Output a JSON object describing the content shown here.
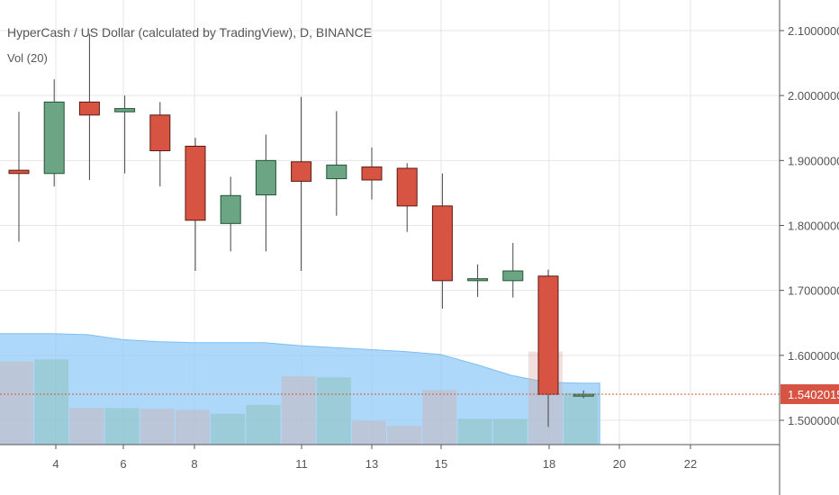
{
  "header": {
    "title": "HyperCash / US Dollar (calculated by TradingView), D, BINANCE",
    "volume_label": "Vol (20)"
  },
  "colors": {
    "up_fill": "#6ba583",
    "up_border": "#225437",
    "down_fill": "#d75442",
    "down_border": "#5b1a13",
    "volume_ma": "#91cbf7",
    "volume_bar": "#a0a6b0",
    "price_line": "#d75442",
    "grid": "#e6e6e6",
    "axis_text": "#555555"
  },
  "chart_data": {
    "type": "candlestick",
    "title": "HyperCash / US Dollar (calculated by TradingView), D, BINANCE",
    "x_ticks": [
      "4",
      "6",
      "8",
      "11",
      "13",
      "15",
      "18",
      "20",
      "22"
    ],
    "y_ticks": [
      "2.1000000",
      "2.0000000",
      "1.9000000",
      "1.8000000",
      "1.7000000",
      "1.6000000",
      "1.5000000"
    ],
    "ylim": [
      1.44,
      2.12
    ],
    "current_price": "1.5402015",
    "grid": true,
    "candles": [
      {
        "o": 1.885,
        "h": 1.975,
        "l": 1.775,
        "c": 1.88
      },
      {
        "o": 1.88,
        "h": 2.025,
        "l": 1.86,
        "c": 1.99
      },
      {
        "o": 1.99,
        "h": 2.095,
        "l": 1.87,
        "c": 1.97
      },
      {
        "o": 1.975,
        "h": 2.0,
        "l": 1.88,
        "c": 1.98
      },
      {
        "o": 1.97,
        "h": 1.99,
        "l": 1.86,
        "c": 1.915
      },
      {
        "o": 1.922,
        "h": 1.935,
        "l": 1.73,
        "c": 1.808
      },
      {
        "o": 1.803,
        "h": 1.875,
        "l": 1.76,
        "c": 1.846
      },
      {
        "o": 1.847,
        "h": 1.94,
        "l": 1.76,
        "c": 1.9
      },
      {
        "o": 1.898,
        "h": 1.998,
        "l": 1.73,
        "c": 1.868
      },
      {
        "o": 1.872,
        "h": 1.976,
        "l": 1.815,
        "c": 1.893
      },
      {
        "o": 1.89,
        "h": 1.92,
        "l": 1.84,
        "c": 1.87
      },
      {
        "o": 1.888,
        "h": 1.896,
        "l": 1.79,
        "c": 1.83
      },
      {
        "o": 1.83,
        "h": 1.88,
        "l": 1.672,
        "c": 1.715
      },
      {
        "o": 1.715,
        "h": 1.74,
        "l": 1.69,
        "c": 1.718
      },
      {
        "o": 1.715,
        "h": 1.773,
        "l": 1.689,
        "c": 1.73
      },
      {
        "o": 1.722,
        "h": 1.732,
        "l": 1.49,
        "c": 1.54
      },
      {
        "o": 1.54,
        "h": 1.546,
        "l": 1.534,
        "c": 1.54
      }
    ],
    "volume": [
      0.84,
      0.86,
      0.37,
      0.37,
      0.36,
      0.35,
      0.31,
      0.4,
      0.69,
      0.68,
      0.24,
      0.19,
      0.55,
      0.26,
      0.26,
      0.94,
      0.52
    ],
    "volume_ma": [
      1.12,
      1.12,
      1.11,
      1.06,
      1.04,
      1.03,
      1.03,
      1.03,
      1.0,
      0.98,
      0.96,
      0.94,
      0.91,
      0.81,
      0.7,
      0.63,
      0.62
    ]
  }
}
